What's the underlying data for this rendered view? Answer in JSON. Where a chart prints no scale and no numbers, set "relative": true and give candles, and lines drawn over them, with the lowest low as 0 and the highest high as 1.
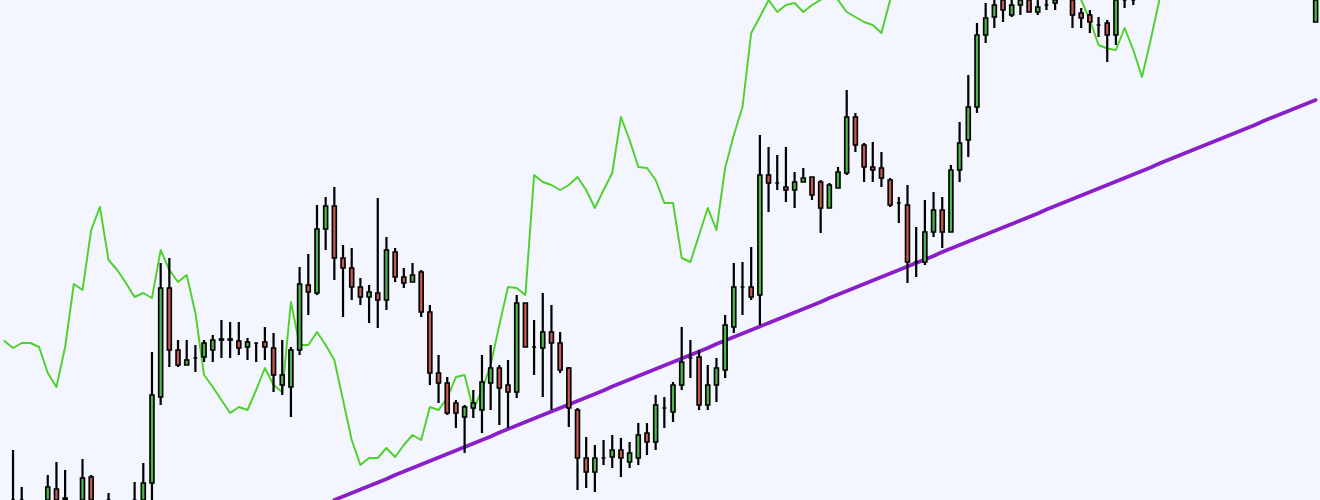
{
  "chart_data": {
    "type": "candlestick",
    "relative": true,
    "colors": [
      null,
      null,
      null,
      null,
      null,
      "#4cb848",
      "#c65a52",
      null,
      null,
      "#4cb848",
      "#c65a52",
      null,
      null,
      null,
      null,
      null,
      "#4cb848",
      "#4cb848",
      "#4cb848",
      "#c65a52",
      "#c65a52",
      "#4cb848",
      null,
      "#4cb848",
      "#4cb848",
      "#4cb848",
      "#c65a52",
      "#c65a52",
      "#4cb848",
      null,
      "#c65a52",
      "#c65a52",
      "#4cb848",
      "#4cb848",
      "#4cb848",
      "#c65a52",
      "#4cb848",
      "#4cb848",
      "#c65a52",
      "#c65a52",
      "#c65a52",
      "#c65a52",
      "#4cb848",
      "#c65a52",
      "#4cb848",
      "#c65a52",
      "#c65a52",
      "#4cb848",
      "#c65a52",
      "#c65a52",
      "#c65a52",
      "#c65a52",
      "#c65a52",
      "#4cb848",
      "#4cb848",
      "#4cb848",
      "#4cb848",
      "#c65a52",
      "#c65a52",
      "#4cb848",
      "#c65a52",
      null,
      "#4cb848",
      "#c65a52",
      "#c65a52",
      "#c65a52",
      "#c65a52",
      "#c65a52",
      "#4cb848",
      null,
      "#4cb848",
      "#c65a52",
      "#4cb848",
      "#4cb848",
      "#c65a52",
      "#4cb848",
      null,
      "#4cb848",
      "#4cb848",
      null,
      "#c65a52",
      "#4cb848",
      "#4cb848",
      "#4cb848",
      "#4cb848",
      null,
      "#c65a52",
      "#4cb848",
      "#c65a52",
      null,
      "#c65a52",
      "#4cb848",
      "#4cb848",
      "#c65a52",
      "#c65a52",
      "#4cb848",
      "#4cb848",
      "#4cb848",
      "#c65a52",
      "#c65a52",
      "#c65a52",
      "#c65a52",
      "#c65a52",
      null,
      "#c65a52",
      null,
      "#4cb848",
      "#4cb848",
      "#c65a52",
      "#4cb848",
      "#4cb848",
      "#4cb848",
      "#4cb848",
      "#4cb848",
      "#4cb848",
      "#c65a52",
      "#4cb848",
      "#4cb848",
      "#c65a52",
      "#4cb848",
      null,
      "#4cb848",
      null,
      "#c65a52",
      "#c65a52",
      "#c65a52",
      null,
      "#c65a52",
      "#4cb848",
      null,
      null,
      null,
      null,
      null,
      null,
      null,
      null,
      null,
      null,
      null,
      null,
      null,
      null,
      null,
      null,
      null,
      null,
      null,
      null,
      null,
      null,
      "#4cb848"
    ],
    "categories": [
      null,
      null,
      null,
      null,
      null,
      null,
      null,
      null,
      null,
      null,
      null,
      null,
      null,
      null,
      null,
      null,
      null,
      null,
      null,
      null,
      null,
      null,
      null,
      null,
      null,
      null,
      null,
      null,
      null,
      null,
      null,
      null,
      null,
      null,
      null,
      null,
      null,
      null,
      null,
      null,
      null,
      null,
      null,
      null,
      null,
      null,
      null,
      null,
      null,
      null,
      null,
      null,
      null,
      null,
      null,
      null,
      null,
      null,
      null,
      null,
      null,
      null,
      null,
      null,
      null,
      null,
      null,
      null,
      null,
      null,
      null,
      null,
      null,
      null,
      null,
      null,
      null,
      null,
      null,
      null,
      null,
      null,
      null,
      null,
      null,
      null,
      null,
      null,
      null,
      null,
      null,
      null,
      null,
      null,
      null,
      null,
      null,
      null,
      null,
      null,
      null,
      null,
      null,
      null,
      null,
      null,
      null,
      null,
      null,
      null,
      null,
      null,
      null,
      null,
      null,
      null,
      null,
      null,
      null,
      null,
      null,
      null,
      null,
      null,
      null,
      null,
      null,
      null,
      null,
      null,
      null,
      null,
      null,
      null,
      null,
      null,
      null,
      null,
      null,
      null,
      null,
      null,
      null,
      null,
      null,
      null,
      null,
      null,
      null,
      null,
      null,
      null
    ],
    "ohlc": [
      null,
      [
        0,
        0.1,
        0,
        0
      ],
      [
        0,
        0.026,
        0,
        0
      ],
      null,
      null,
      [
        0,
        0.05,
        0,
        0.026
      ],
      [
        0.022,
        0.076,
        0,
        0
      ],
      [
        0.004,
        0.06,
        0,
        0
      ],
      null,
      [
        0,
        0.082,
        0,
        0.044
      ],
      [
        0.046,
        0.05,
        0,
        0
      ],
      null,
      [
        0,
        0.014,
        0,
        0
      ],
      null,
      null,
      [
        0,
        0.036,
        0,
        0
      ],
      [
        0,
        0.074,
        0,
        0.034
      ],
      [
        0.034,
        0.296,
        0,
        0.21
      ],
      [
        0.206,
        0.474,
        0.19,
        0.424
      ],
      [
        0.424,
        0.484,
        0.266,
        0.3
      ],
      [
        0.3,
        0.32,
        0.266,
        0.27
      ],
      [
        0.27,
        0.32,
        0.27,
        0.28
      ],
      [
        0.284,
        0.31,
        0.256,
        0.284
      ],
      [
        0.286,
        0.32,
        0.276,
        0.314
      ],
      [
        0.3,
        0.33,
        0.276,
        0.32
      ],
      [
        0.32,
        0.36,
        0.284,
        0.322
      ],
      [
        0.322,
        0.356,
        0.284,
        0.32
      ],
      [
        0.318,
        0.356,
        0.29,
        0.304
      ],
      [
        0.306,
        0.324,
        0.28,
        0.316
      ],
      [
        0.314,
        0.314,
        0.276,
        0.314
      ],
      [
        0.316,
        0.346,
        0.28,
        0.306
      ],
      [
        0.304,
        0.334,
        0.216,
        0.25
      ],
      [
        0.23,
        0.32,
        0.21,
        0.25
      ],
      [
        0.226,
        0.306,
        0.166,
        0.3
      ],
      [
        0.3,
        0.466,
        0.29,
        0.432
      ],
      [
        0.43,
        0.492,
        0.37,
        0.416
      ],
      [
        0.414,
        0.59,
        0.41,
        0.542
      ],
      [
        0.542,
        0.606,
        0.5,
        0.588
      ],
      [
        0.588,
        0.626,
        0.44,
        0.484
      ],
      [
        0.484,
        0.51,
        0.366,
        0.464
      ],
      [
        0.464,
        0.504,
        0.4,
        0.426
      ],
      [
        0.426,
        0.444,
        0.39,
        0.406
      ],
      [
        0.406,
        0.43,
        0.354,
        0.416
      ],
      [
        0.414,
        0.604,
        0.344,
        0.4
      ],
      [
        0.4,
        0.526,
        0.38,
        0.5
      ],
      [
        0.496,
        0.504,
        0.436,
        0.446
      ],
      [
        0.446,
        0.464,
        0.424,
        0.434
      ],
      [
        0.436,
        0.474,
        0.436,
        0.45
      ],
      [
        0.456,
        0.46,
        0.366,
        0.376
      ],
      [
        0.376,
        0.39,
        0.23,
        0.254
      ],
      [
        0.254,
        0.29,
        0.194,
        0.234
      ],
      [
        0.234,
        0.246,
        0.17,
        0.174
      ],
      [
        0.194,
        0.2,
        0.144,
        0.174
      ],
      [
        0.166,
        0.19,
        0.094,
        0.186
      ],
      [
        0.184,
        0.22,
        0.164,
        0.194
      ],
      [
        0.18,
        0.29,
        0.134,
        0.236
      ],
      [
        0.234,
        0.31,
        0.18,
        0.264
      ],
      [
        0.264,
        0.27,
        0.15,
        0.224
      ],
      [
        0.23,
        0.28,
        0.144,
        0.216
      ],
      [
        0.216,
        0.41,
        0.204,
        0.394
      ],
      [
        0.394,
        0.394,
        0.306,
        0.306
      ],
      [
        0.306,
        0.36,
        0.25,
        0.306
      ],
      [
        0.304,
        0.414,
        0.206,
        0.336
      ],
      [
        0.336,
        0.39,
        0.18,
        0.314
      ],
      [
        0.314,
        0.336,
        0.254,
        0.26
      ],
      [
        0.264,
        0.266,
        0.146,
        0.184
      ],
      [
        0.18,
        0.184,
        0.02,
        0.084
      ],
      [
        0.084,
        0.126,
        0.024,
        0.056
      ],
      [
        0.056,
        0.11,
        0.016,
        0.084
      ],
      [
        0.084,
        0.12,
        0.07,
        0.084
      ],
      [
        0.086,
        0.13,
        0.064,
        0.1
      ],
      [
        0.1,
        0.124,
        0.046,
        0.084
      ],
      [
        0.076,
        0.116,
        0.064,
        0.094
      ],
      [
        0.084,
        0.154,
        0.07,
        0.13
      ],
      [
        0.134,
        0.154,
        0.09,
        0.116
      ],
      [
        0.116,
        0.21,
        0.1,
        0.19
      ],
      [
        0.184,
        0.206,
        0.144,
        0.184
      ],
      [
        0.176,
        0.236,
        0.156,
        0.23
      ],
      [
        0.23,
        0.346,
        0.22,
        0.276
      ],
      [
        0.284,
        0.32,
        0.244,
        0.284
      ],
      [
        0.286,
        0.3,
        0.18,
        0.19
      ],
      [
        0.19,
        0.27,
        0.18,
        0.23
      ],
      [
        0.23,
        0.284,
        0.196,
        0.264
      ],
      [
        0.26,
        0.37,
        0.244,
        0.35
      ],
      [
        0.346,
        0.474,
        0.334,
        0.426
      ],
      [
        0.426,
        0.476,
        0.37,
        0.426
      ],
      [
        0.426,
        0.506,
        0.4,
        0.406
      ],
      [
        0.41,
        0.73,
        0.35,
        0.65
      ],
      [
        0.65,
        0.706,
        0.576,
        0.634
      ],
      [
        0.634,
        0.69,
        0.62,
        0.634
      ],
      [
        0.626,
        0.706,
        0.596,
        0.62
      ],
      [
        0.62,
        0.656,
        0.584,
        0.636
      ],
      [
        0.636,
        0.664,
        0.636,
        0.644
      ],
      [
        0.646,
        0.646,
        0.6,
        0.61
      ],
      [
        0.636,
        0.64,
        0.534,
        0.584
      ],
      [
        0.584,
        0.634,
        0.584,
        0.63
      ],
      [
        0.624,
        0.666,
        0.624,
        0.656
      ],
      [
        0.654,
        0.82,
        0.65,
        0.766
      ],
      [
        0.766,
        0.774,
        0.696,
        0.71
      ],
      [
        0.71,
        0.714,
        0.636,
        0.666
      ],
      [
        0.666,
        0.716,
        0.636,
        0.66
      ],
      [
        0.664,
        0.696,
        0.626,
        0.644
      ],
      [
        0.64,
        0.644,
        0.586,
        0.59
      ],
      [
        0.594,
        0.606,
        0.554,
        0.594
      ],
      [
        0.59,
        0.63,
        0.434,
        0.476
      ],
      [
        0.476,
        0.546,
        0.446,
        0.476
      ],
      [
        0.476,
        0.6,
        0.47,
        0.536
      ],
      [
        0.536,
        0.616,
        0.526,
        0.58
      ],
      [
        0.58,
        0.606,
        0.504,
        0.536
      ],
      [
        0.536,
        0.67,
        0.536,
        0.66
      ],
      [
        0.66,
        0.756,
        0.636,
        0.714
      ],
      [
        0.72,
        0.85,
        0.686,
        0.786
      ],
      [
        0.786,
        0.954,
        0.774,
        0.93
      ],
      [
        0.93,
        0.994,
        0.914,
        0.964
      ],
      [
        0.966,
        1,
        0.944,
        0.99
      ],
      [
        1,
        1,
        0.956,
        0.98
      ],
      [
        0.97,
        1,
        0.966,
        0.99
      ],
      [
        0.99,
        1,
        0.97,
        1
      ],
      [
        1,
        1,
        0.976,
        0.976
      ],
      [
        0.976,
        1,
        0.97,
        0.986
      ],
      [
        0.99,
        1,
        0.98,
        0.99
      ],
      [
        0.994,
        1,
        0.98,
        1
      ],
      null,
      [
        1,
        1,
        0.944,
        0.97
      ],
      [
        0.974,
        0.984,
        0.944,
        0.964
      ],
      [
        0.97,
        0.98,
        0.934,
        0.956
      ],
      [
        0.95,
        0.966,
        0.926,
        0.95
      ],
      [
        0.954,
        0.96,
        0.876,
        0.93
      ],
      [
        0.93,
        1,
        0.91,
        1
      ],
      [
        1,
        1,
        0.984,
        1
      ],
      [
        1,
        1,
        0.99,
        1
      ],
      null,
      null,
      null,
      null,
      null,
      null,
      null,
      null,
      null,
      null,
      null,
      null,
      null,
      null,
      null,
      null,
      null,
      null,
      null,
      null,
      [
        0.956,
        1,
        0.956,
        1
      ]
    ],
    "series": [
      {
        "type": "line",
        "color": "#4fd12c",
        "values": [
          0.318,
          0.304,
          0.314,
          0.314,
          0.306,
          0.254,
          0.226,
          0.306,
          0.432,
          0.42,
          0.54,
          0.586,
          0.48,
          0.46,
          0.434,
          0.406,
          0.414,
          0.404,
          0.5,
          0.46,
          0.436,
          0.45,
          0.374,
          0.25,
          0.226,
          0.2,
          0.174,
          0.186,
          0.18,
          0.22,
          0.264,
          0.23,
          0.216,
          0.396,
          0.31,
          0.31,
          0.336,
          0.31,
          0.28,
          0.2,
          0.12,
          0.07,
          0.084,
          0.084,
          0.104,
          0.086,
          0.11,
          0.13,
          0.12,
          0.186,
          0.18,
          0.204,
          0.246,
          0.25,
          0.18,
          0.22,
          0.27,
          0.35,
          0.426,
          0.424,
          0.41,
          0.65,
          0.636,
          0.63,
          0.62,
          0.63,
          0.646,
          0.62,
          0.584,
          0.62,
          0.654,
          0.766,
          0.72,
          0.666,
          0.664,
          0.64,
          0.594,
          0.594,
          0.484,
          0.476,
          0.53,
          0.584,
          0.54,
          0.664,
          0.73,
          0.786,
          0.934,
          0.966,
          1,
          0.976,
          0.99,
          0.994,
          0.976,
          0.99,
          1,
          null,
          1,
          0.976,
          0.966,
          0.956,
          0.95,
          0.934,
          1,
          null,
          null,
          null,
          null,
          null,
          null,
          null,
          null,
          null,
          null,
          null,
          null,
          null,
          null,
          null,
          null,
          null,
          null,
          null,
          null,
          null,
          1,
          0.96,
          0.91,
          0.903,
          0.9,
          0.944,
          0.9,
          0.846,
          0.92,
          1,
          null,
          null,
          null,
          null,
          null,
          null,
          null,
          null,
          null,
          null,
          null,
          null,
          null,
          null,
          null,
          null,
          null,
          null
        ]
      },
      {
        "type": "line",
        "color": "#8a1fc9",
        "values": [
          null,
          null,
          null,
          null,
          null,
          null,
          null,
          null,
          null,
          null,
          null,
          null,
          null,
          null,
          null,
          null,
          null,
          null,
          null,
          null,
          null,
          null,
          null,
          null,
          null,
          null,
          null,
          null,
          null,
          null,
          null,
          null,
          null,
          null,
          null,
          null,
          null,
          null,
          0,
          0.007,
          0.014,
          0.021,
          0.028,
          0.035,
          0.042,
          0.05,
          0.057,
          0.064,
          0.071,
          0.078,
          0.085,
          0.092,
          0.099,
          0.106,
          0.113,
          0.12,
          0.127,
          0.135,
          0.142,
          0.149,
          0.156,
          0.163,
          0.17,
          0.177,
          0.184,
          0.191,
          0.198,
          0.205,
          0.212,
          0.219,
          0.227,
          0.234,
          0.241,
          0.248,
          0.255,
          0.262,
          0.269,
          0.276,
          0.283,
          0.29,
          0.297,
          0.304,
          0.312,
          0.319,
          0.326,
          0.333,
          0.34,
          0.347,
          0.354,
          0.361,
          0.368,
          0.375,
          0.382,
          0.389,
          0.396,
          0.404,
          0.411,
          0.418,
          0.425,
          0.432,
          0.439,
          0.446,
          0.453,
          0.46,
          0.467,
          0.474,
          0.481,
          0.488,
          0.496,
          0.503,
          0.51,
          0.517,
          0.524,
          0.531,
          0.538,
          0.545,
          0.552,
          0.559,
          0.566,
          0.573,
          0.581,
          0.588,
          0.595,
          0.602,
          0.609,
          0.616,
          0.623,
          0.63,
          0.637,
          0.644,
          0.651,
          0.658,
          0.665,
          0.673,
          0.68,
          0.687,
          0.694,
          0.701,
          0.708,
          0.715,
          0.722,
          0.729,
          0.736,
          0.743,
          0.75,
          0.758,
          0.765,
          0.772,
          0.779,
          0.786,
          0.793,
          0.8
        ]
      }
    ]
  }
}
